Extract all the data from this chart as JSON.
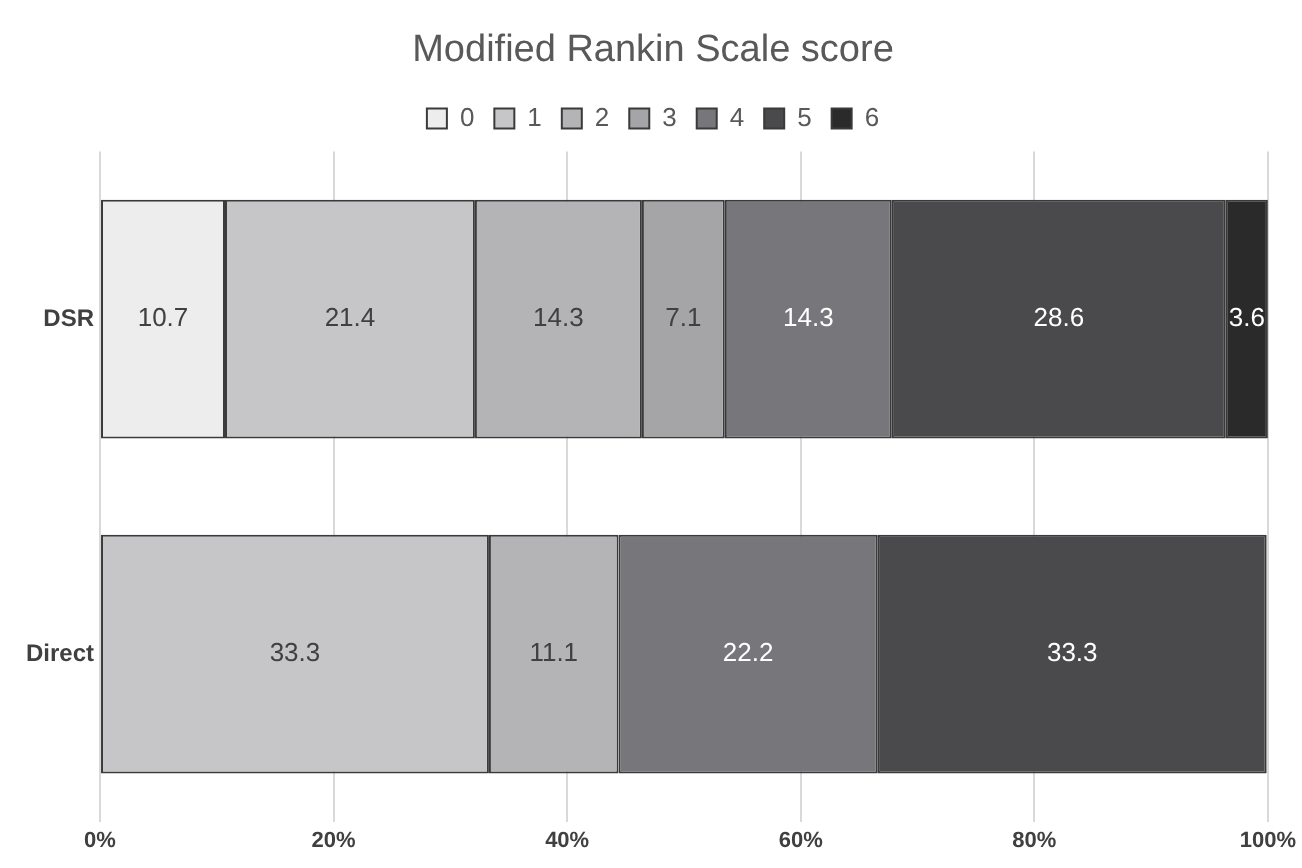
{
  "chart_data": {
    "type": "bar",
    "title": "Modified Rankin Scale score",
    "orientation": "horizontal",
    "stacked": true,
    "data_labels": true,
    "legend": "top",
    "grid": "x",
    "categories": [
      "DSR",
      "Direct"
    ],
    "series": [
      {
        "name": "0",
        "color": "#ededed",
        "values": [
          10.7,
          null
        ]
      },
      {
        "name": "1",
        "color": "#c6c6c8",
        "values": [
          21.4,
          33.3
        ]
      },
      {
        "name": "2",
        "color": "#b4b4b7",
        "values": [
          14.3,
          11.1
        ]
      },
      {
        "name": "3",
        "color": "#a5a5a8",
        "values": [
          7.1,
          null
        ]
      },
      {
        "name": "4",
        "color": "#77777b",
        "values": [
          14.3,
          22.2
        ]
      },
      {
        "name": "5",
        "color": "#4a4a4d",
        "values": [
          28.6,
          33.3
        ]
      },
      {
        "name": "6",
        "color": "#2a2a2b",
        "values": [
          3.6,
          null
        ]
      }
    ],
    "xlim": [
      0,
      100
    ],
    "xticks": [
      {
        "value": 0,
        "label": "0%"
      },
      {
        "value": 20,
        "label": "20%"
      },
      {
        "value": 40,
        "label": "40%"
      },
      {
        "value": 60,
        "label": "60%"
      },
      {
        "value": 80,
        "label": "80%"
      },
      {
        "value": 100,
        "label": "100%"
      }
    ]
  }
}
